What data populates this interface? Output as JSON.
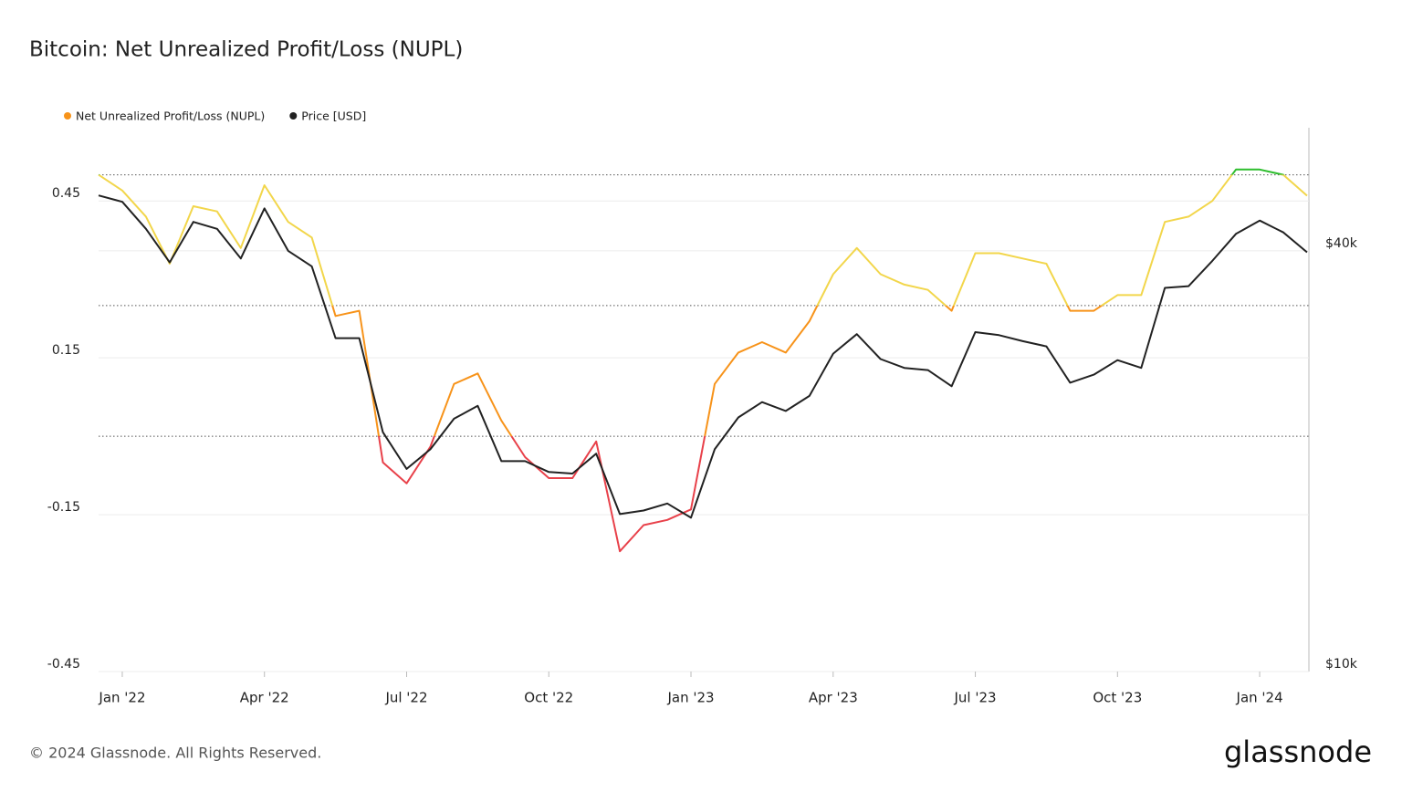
{
  "chart_data": {
    "type": "line",
    "title": "Bitcoin: Net Unrealized Profit/Loss (NUPL)",
    "footer": "© 2024 Glassnode. All Rights Reserved.",
    "brand": "glassnode",
    "categories": [
      null,
      "Jan '22",
      null,
      null,
      null,
      null,
      null,
      "Apr '22",
      null,
      null,
      null,
      null,
      null,
      "Jul '22",
      null,
      null,
      null,
      null,
      null,
      "Oct '22",
      null,
      null,
      null,
      null,
      null,
      "Jan '23",
      null,
      null,
      null,
      null,
      null,
      "Apr '23",
      null,
      null,
      null,
      null,
      null,
      "Jul '23",
      null,
      null,
      null,
      null,
      null,
      "Oct '23",
      null,
      null,
      null,
      null,
      null,
      "Jan '24",
      null,
      null
    ],
    "series": [
      {
        "name": "Net Unrealized Profit/Loss (NUPL)",
        "color": "#f7931a",
        "axis": "y",
        "zone_thresholds": [
          0,
          0.25,
          0.5
        ],
        "zone_colors": [
          "#e8414a",
          "#f7931a",
          "#f2d64b",
          "#2dbd2d"
        ],
        "values": [
          0.5,
          0.47,
          0.42,
          0.33,
          0.44,
          0.43,
          0.36,
          0.48,
          0.41,
          0.38,
          0.23,
          0.24,
          -0.05,
          -0.09,
          -0.02,
          0.1,
          0.12,
          0.03,
          -0.04,
          -0.08,
          -0.08,
          -0.01,
          -0.22,
          -0.17,
          -0.16,
          -0.14,
          0.1,
          0.16,
          0.18,
          0.16,
          0.22,
          0.31,
          0.36,
          0.31,
          0.29,
          0.28,
          0.24,
          0.35,
          0.35,
          0.34,
          0.33,
          0.24,
          0.24,
          0.27,
          0.27,
          0.41,
          0.42,
          0.45,
          0.51,
          0.51,
          0.5,
          0.46
        ]
      },
      {
        "name": "Price [USD]",
        "color": "#222222",
        "axis": "y2",
        "values": [
          48000,
          47000,
          43000,
          38500,
          44000,
          43000,
          39000,
          46000,
          40000,
          38000,
          30000,
          30000,
          22000,
          19500,
          20800,
          23000,
          24000,
          20000,
          20000,
          19300,
          19200,
          20500,
          16800,
          17000,
          17400,
          16600,
          20800,
          23100,
          24300,
          23600,
          24800,
          28500,
          30400,
          28000,
          27200,
          27000,
          25600,
          30600,
          30300,
          29700,
          29200,
          25900,
          26600,
          27900,
          27200,
          35400,
          35600,
          38700,
          42300,
          44200,
          42500,
          39800
        ]
      }
    ],
    "ylim": [
      -0.45,
      0.59
    ],
    "yticks": [
      0.45,
      0.15,
      -0.15,
      -0.45
    ],
    "y2lim": [
      10000,
      60000
    ],
    "y2scale": "log",
    "y2ticks": [
      {
        "value": 40000,
        "label": "$40k"
      },
      {
        "value": 10000,
        "label": "$10k"
      }
    ],
    "grid": true,
    "legend": "top-left"
  }
}
